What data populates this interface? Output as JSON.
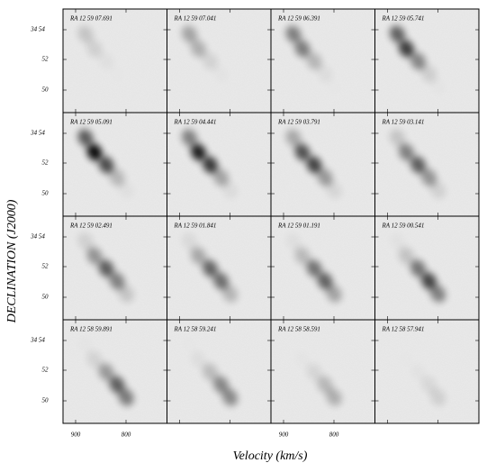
{
  "chart_data": {
    "type": "image-grid",
    "panels": [
      "RA 12 59 07.691",
      "RA 12 59 07.041",
      "RA 12 59 06.391",
      "RA 12 59 05.741",
      "RA 12 59 05.091",
      "RA 12 59 04.441",
      "RA 12 59 03.791",
      "RA 12 59 03.141",
      "RA 12 59 02.491",
      "RA 12 59 01.841",
      "RA 12 59 01.191",
      "RA 12 59 00.541",
      "RA 12 58 59.891",
      "RA 12 58 59.241",
      "RA 12 58 58.591",
      "RA 12 58 57.941"
    ],
    "yticks": [
      "34 54",
      "52",
      "50"
    ],
    "xticks": [
      "900",
      "800"
    ],
    "y_label": "DECLINATION (J2000)",
    "x_label": "Velocity (km/s)"
  }
}
